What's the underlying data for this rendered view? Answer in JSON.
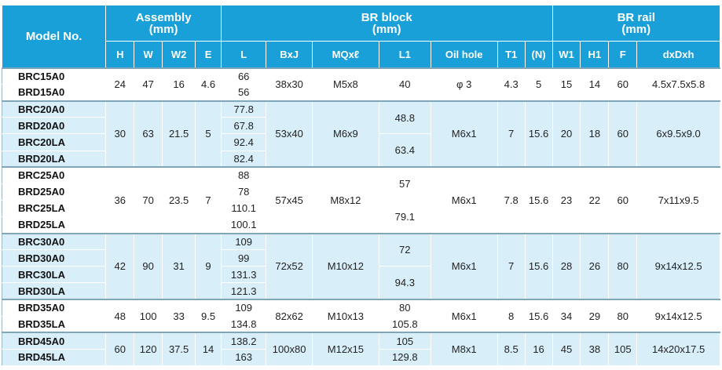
{
  "header": {
    "model_no": "Model No.",
    "assembly": "Assembly",
    "assembly_unit": "(mm)",
    "br_block": "BR block",
    "br_block_unit": "(mm)",
    "br_rail": "BR rail",
    "br_rail_unit": "(mm)",
    "columns": [
      "H",
      "W",
      "W2",
      "E",
      "L",
      "BxJ",
      "MQxℓ",
      "L1",
      "Oil hole",
      "T1",
      "(N)",
      "W1",
      "H1",
      "F",
      "dxDxh"
    ]
  },
  "groups": [
    {
      "models": [
        "BRC15A0",
        "BRD15A0"
      ],
      "H": "24",
      "W": "47",
      "W2": "16",
      "E": "4.6",
      "L": [
        "66",
        "56"
      ],
      "BxJ": "38x30",
      "MQ": "M5x8",
      "L1": [
        "40"
      ],
      "oil_hole": "φ 3",
      "T1": "4.3",
      "N": "5",
      "W1": "15",
      "H1": "14",
      "F": "60",
      "dxDxh": "4.5x7.5x5.8"
    },
    {
      "models": [
        "BRC20A0",
        "BRD20A0",
        "BRC20LA",
        "BRD20LA"
      ],
      "H": "30",
      "W": "63",
      "W2": "21.5",
      "E": "5",
      "L": [
        "77.8",
        "67.8",
        "92.4",
        "82.4"
      ],
      "BxJ": "53x40",
      "MQ": "M6x9",
      "L1": [
        "48.8",
        "63.4"
      ],
      "oil_hole": "M6x1",
      "T1": "7",
      "N": "15.6",
      "W1": "20",
      "H1": "18",
      "F": "60",
      "dxDxh": "6x9.5x9.0"
    },
    {
      "models": [
        "BRC25A0",
        "BRD25A0",
        "BRC25LA",
        "BRD25LA"
      ],
      "H": "36",
      "W": "70",
      "W2": "23.5",
      "E": "7",
      "L": [
        "88",
        "78",
        "110.1",
        "100.1"
      ],
      "BxJ": "57x45",
      "MQ": "M8x12",
      "L1": [
        "57",
        "79.1"
      ],
      "oil_hole": "M6x1",
      "T1": "7.8",
      "N": "15.6",
      "W1": "23",
      "H1": "22",
      "F": "60",
      "dxDxh": "7x11x9.5"
    },
    {
      "models": [
        "BRC30A0",
        "BRD30A0",
        "BRC30LA",
        "BRD30LA"
      ],
      "H": "42",
      "W": "90",
      "W2": "31",
      "E": "9",
      "L": [
        "109",
        "99",
        "131.3",
        "121.3"
      ],
      "BxJ": "72x52",
      "MQ": "M10x12",
      "L1": [
        "72",
        "94.3"
      ],
      "oil_hole": "M6x1",
      "T1": "7",
      "N": "15.6",
      "W1": "28",
      "H1": "26",
      "F": "80",
      "dxDxh": "9x14x12.5"
    },
    {
      "models": [
        "BRD35A0",
        "BRD35LA"
      ],
      "H": "48",
      "W": "100",
      "W2": "33",
      "E": "9.5",
      "L": [
        "109",
        "134.8"
      ],
      "BxJ": "82x62",
      "MQ": "M10x13",
      "L1": [
        "80",
        "105.8"
      ],
      "oil_hole": "M6x1",
      "T1": "8",
      "N": "15.6",
      "W1": "34",
      "H1": "29",
      "F": "80",
      "dxDxh": "9x14x12.5"
    },
    {
      "models": [
        "BRD45A0",
        "BRD45LA"
      ],
      "H": "60",
      "W": "120",
      "W2": "37.5",
      "E": "14",
      "L": [
        "138.2",
        "163"
      ],
      "BxJ": "100x80",
      "MQ": "M12x15",
      "L1": [
        "105",
        "129.8"
      ],
      "oil_hole": "M8x1",
      "T1": "8.5",
      "N": "16",
      "W1": "45",
      "H1": "38",
      "F": "105",
      "dxDxh": "14x20x17.5"
    }
  ]
}
